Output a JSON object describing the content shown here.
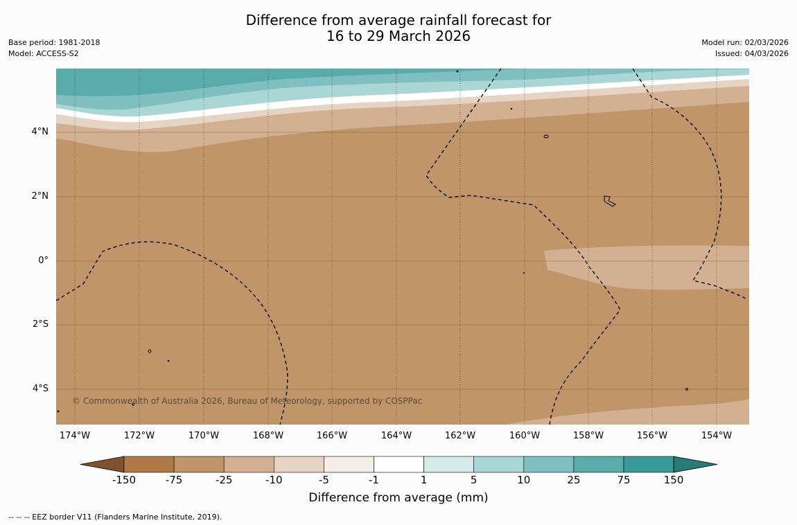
{
  "title_line1": "Difference from average rainfall forecast for",
  "title_line2": "16 to 29 March 2026",
  "meta_left": {
    "base_period": "Base period: 1981-2018",
    "model": "Model: ACCESS-S2"
  },
  "meta_right": {
    "model_run": "Model run: 02/03/2026",
    "issued": "Issued: 04/03/2026"
  },
  "lat_labels": [
    "4°N",
    "2°N",
    "0°",
    "2°S",
    "4°S"
  ],
  "lon_labels": [
    "174°W",
    "172°W",
    "170°W",
    "168°W",
    "166°W",
    "164°W",
    "162°W",
    "160°W",
    "158°W",
    "156°W",
    "154°W"
  ],
  "colorbar": {
    "ticks": [
      "-150",
      "-75",
      "-25",
      "-10",
      "-5",
      "-1",
      "1",
      "5",
      "10",
      "25",
      "75",
      "150"
    ],
    "colors": [
      "#7f5330",
      "#b07a47",
      "#c0956a",
      "#d3b091",
      "#e5d4c4",
      "#f3eee6",
      "#ffffff",
      "#d5ebea",
      "#aad6d6",
      "#80bfbf",
      "#5aabab",
      "#3a9a98",
      "#2a7a78"
    ],
    "label": "Difference from average (mm)"
  },
  "copyright": "© Commonwealth of Australia 2026, Bureau of Meteorology, supported by COSPPac",
  "footer": "--  --  -- EEZ border V11 (Flanders Marine Institute, 2019)."
}
